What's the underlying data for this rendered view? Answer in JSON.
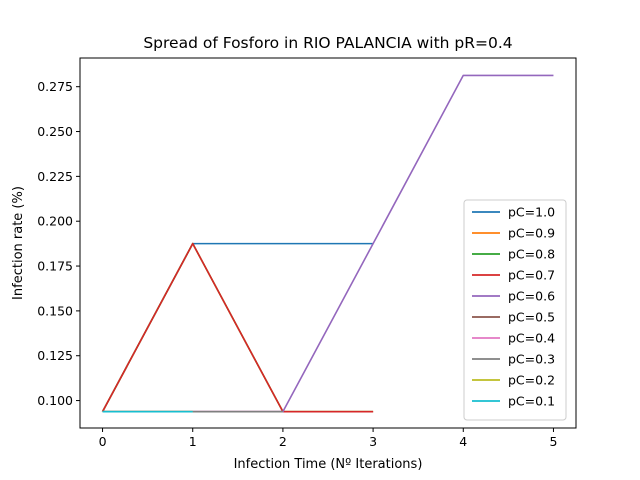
{
  "chart_data": {
    "type": "line",
    "title": "Spread of Fosforo in RIO PALANCIA with pR=0.4",
    "xlabel": "Infection Time (Nº Iterations)",
    "ylabel": "Infection rate (%)",
    "xlim": [
      -0.25,
      5.25
    ],
    "ylim": [
      0.0847,
      0.291
    ],
    "xticks": [
      0,
      1,
      2,
      3,
      4,
      5
    ],
    "yticks": [
      "0.100",
      "0.125",
      "0.150",
      "0.175",
      "0.200",
      "0.225",
      "0.250",
      "0.275"
    ],
    "grid": false,
    "legend_position": "lower right",
    "series": [
      {
        "name": "pC=1.0",
        "color": "#1f77b4",
        "x": [
          0,
          1,
          2,
          3
        ],
        "y": [
          0.0938,
          0.1875,
          0.1875,
          0.1875
        ]
      },
      {
        "name": "pC=0.9",
        "color": "#ff7f0e",
        "x": [
          0,
          1,
          2,
          3
        ],
        "y": [
          0.0938,
          0.1875,
          0.0938,
          0.0938
        ]
      },
      {
        "name": "pC=0.8",
        "color": "#2ca02c",
        "x": [
          0,
          1,
          2,
          3
        ],
        "y": [
          0.0938,
          0.1875,
          0.0938,
          0.0938
        ]
      },
      {
        "name": "pC=0.7",
        "color": "#d62728",
        "x": [
          0,
          1,
          2,
          3
        ],
        "y": [
          0.0938,
          0.1875,
          0.0938,
          0.0938
        ]
      },
      {
        "name": "pC=0.6",
        "color": "#9467bd",
        "x": [
          0,
          1,
          2,
          3,
          4,
          5
        ],
        "y": [
          0.0938,
          0.0938,
          0.0938,
          0.1875,
          0.2813,
          0.2813
        ]
      },
      {
        "name": "pC=0.5",
        "color": "#8c564b",
        "x": [
          0,
          1,
          2
        ],
        "y": [
          0.0938,
          0.0938,
          0.0938
        ]
      },
      {
        "name": "pC=0.4",
        "color": "#e377c2",
        "x": [
          0,
          1,
          2
        ],
        "y": [
          0.0938,
          0.0938,
          0.0938
        ]
      },
      {
        "name": "pC=0.3",
        "color": "#7f7f7f",
        "x": [
          0,
          1,
          2
        ],
        "y": [
          0.0938,
          0.0938,
          0.0938
        ]
      },
      {
        "name": "pC=0.2",
        "color": "#bcbd22",
        "x": [
          0,
          1
        ],
        "y": [
          0.0938,
          0.0938
        ]
      },
      {
        "name": "pC=0.1",
        "color": "#17becf",
        "x": [
          0,
          1
        ],
        "y": [
          0.0938,
          0.0938
        ]
      }
    ]
  }
}
